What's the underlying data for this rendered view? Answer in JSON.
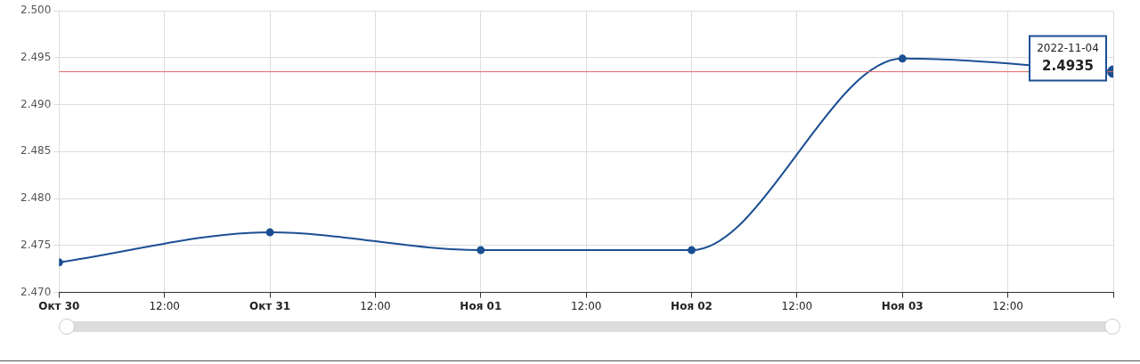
{
  "chart_data": {
    "type": "line",
    "x": [
      "2022-10-30",
      "2022-10-31",
      "2022-11-01",
      "2022-11-02",
      "2022-11-03",
      "2022-11-04"
    ],
    "series": [
      {
        "color": "#1b4f93",
        "values": [
          2.4732,
          2.4764,
          2.4745,
          2.4745,
          2.4949,
          2.4935
        ]
      }
    ],
    "xlim": [
      "2022-10-30",
      "2022-11-04"
    ],
    "xticks": [
      {
        "value": "2022-10-30",
        "label": "Окт 30"
      },
      {
        "value": "2022-10-30T12:00",
        "label": "12:00"
      },
      {
        "value": "2022-10-31",
        "label": "Окт 31"
      },
      {
        "value": "2022-10-31T12:00",
        "label": "12:00"
      },
      {
        "value": "2022-11-01",
        "label": "Ноя 01"
      },
      {
        "value": "2022-11-01T12:00",
        "label": "12:00"
      },
      {
        "value": "2022-11-02",
        "label": "Ноя 02"
      },
      {
        "value": "2022-11-02T12:00",
        "label": "12:00"
      },
      {
        "value": "2022-11-03",
        "label": "Ноя 03"
      },
      {
        "value": "2022-11-03T12:00",
        "label": "12:00"
      },
      {
        "value": "2022-11-04",
        "label": null
      }
    ],
    "ylim": [
      2.47,
      2.5
    ],
    "yticks": [
      {
        "value": 2.47,
        "label": "2.470"
      },
      {
        "value": 2.475,
        "label": "2.475"
      },
      {
        "value": 2.48,
        "label": "2.480"
      },
      {
        "value": 2.485,
        "label": "2.485"
      },
      {
        "value": 2.49,
        "label": "2.490"
      },
      {
        "value": 2.495,
        "label": "2.495"
      },
      {
        "value": 2.5,
        "label": "2.500"
      }
    ],
    "ref_lines": [
      {
        "axis": "y",
        "value": 2.4935,
        "color": "#e06666"
      }
    ],
    "annotations": [
      {
        "text": "2022-11-04\n2.4935",
        "x": "2022-11-04",
        "y": 2.4935
      }
    ],
    "grid": true,
    "marker": "circle",
    "line_style": "solid",
    "legend": false
  }
}
